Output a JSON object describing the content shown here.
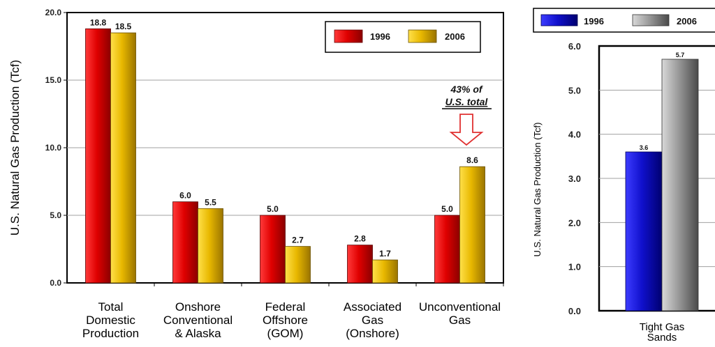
{
  "chart_data": [
    {
      "type": "bar",
      "title": "",
      "ylabel": "U.S. Natural Gas Production (Tcf)",
      "xlabel": "",
      "ylim": [
        0,
        20
      ],
      "yticks": [
        "0.0",
        "5.0",
        "10.0",
        "15.0",
        "20.0"
      ],
      "grid": true,
      "legend_position": "top-right",
      "categories": [
        [
          "Total",
          "Domestic",
          "Production"
        ],
        [
          "Onshore",
          "Conventional",
          "& Alaska"
        ],
        [
          "Federal",
          "Offshore",
          "(GOM)"
        ],
        [
          "Associated",
          "Gas",
          "(Onshore)"
        ],
        [
          "Unconventional",
          "Gas"
        ]
      ],
      "series": [
        {
          "name": "1996",
          "color": "#e00000",
          "values": [
            18.8,
            6.0,
            5.0,
            2.8,
            5.0
          ],
          "labels": [
            "18.8",
            "6.0",
            "5.0",
            "2.8",
            "5.0"
          ]
        },
        {
          "name": "2006",
          "color": "#e8b800",
          "values": [
            18.5,
            5.5,
            2.7,
            1.7,
            8.6
          ],
          "labels": [
            "18.5",
            "5.5",
            "2.7",
            "1.7",
            "8.6"
          ]
        }
      ],
      "annotation": {
        "line1": "43% of",
        "line2": "U.S. total"
      }
    },
    {
      "type": "bar",
      "title": "",
      "ylabel": "U.S. Natural Gas Production (Tcf)",
      "xlabel": "",
      "ylim": [
        0,
        6
      ],
      "yticks": [
        "0.0",
        "1.0",
        "2.0",
        "3.0",
        "4.0",
        "5.0",
        "6.0"
      ],
      "grid": true,
      "legend_position": "top",
      "categories": [
        [
          "Tight Gas",
          "Sands"
        ]
      ],
      "series": [
        {
          "name": "1996",
          "color": "#1010cc",
          "values": [
            3.6
          ],
          "labels": [
            "3.6"
          ]
        },
        {
          "name": "2006",
          "color": "#8a8a8a",
          "values": [
            5.7
          ],
          "labels": [
            "5.7"
          ]
        }
      ]
    }
  ]
}
